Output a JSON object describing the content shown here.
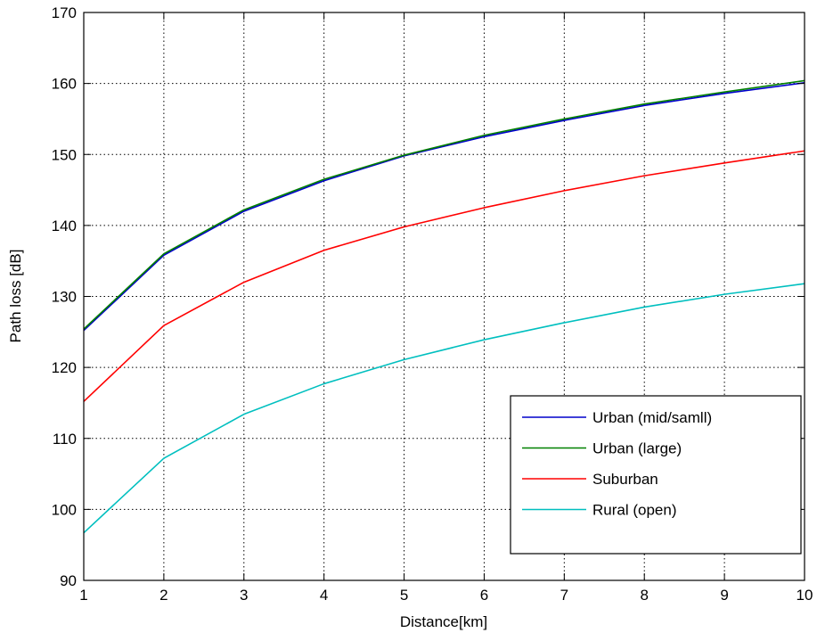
{
  "chart_data": {
    "type": "line",
    "title": "",
    "xlabel": "Distance[km]",
    "ylabel": "Path loss [dB]",
    "xlim": [
      1,
      10
    ],
    "ylim": [
      90,
      170
    ],
    "xticks": [
      1,
      2,
      3,
      4,
      5,
      6,
      7,
      8,
      9,
      10
    ],
    "yticks": [
      90,
      100,
      110,
      120,
      130,
      140,
      150,
      160,
      170
    ],
    "grid": true,
    "grid_style": "dotted",
    "legend_position": "bottom-right",
    "x": [
      1,
      2,
      3,
      4,
      5,
      6,
      7,
      8,
      9,
      10
    ],
    "series": [
      {
        "name": "Urban (mid/samll)",
        "color": "#0000cc",
        "values": [
          125.2,
          135.8,
          142.0,
          146.3,
          149.8,
          152.5,
          154.8,
          156.9,
          158.6,
          160.1
        ]
      },
      {
        "name": "Urban (large)",
        "color": "#008000",
        "values": [
          125.4,
          136.0,
          142.2,
          146.5,
          149.9,
          152.7,
          155.0,
          157.1,
          158.8,
          160.4
        ]
      },
      {
        "name": "Suburban",
        "color": "#ff0000",
        "values": [
          115.2,
          125.9,
          132.0,
          136.5,
          139.8,
          142.5,
          144.9,
          147.0,
          148.8,
          150.5
        ]
      },
      {
        "name": "Rural (open)",
        "color": "#00bfbf",
        "values": [
          96.7,
          107.2,
          113.4,
          117.7,
          121.1,
          123.9,
          126.3,
          128.5,
          130.3,
          131.8
        ]
      }
    ]
  }
}
